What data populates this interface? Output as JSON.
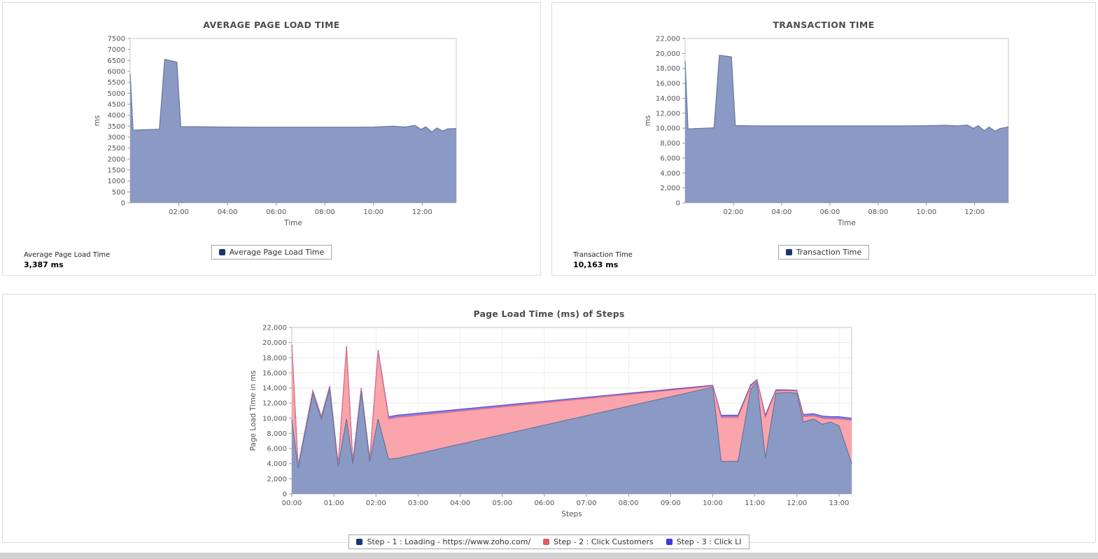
{
  "panels": {
    "avg_page_load": {
      "title": "AVERAGE PAGE LOAD TIME",
      "legend": [
        {
          "label": "Average Page Load Time",
          "color": "#17376f"
        }
      ],
      "summary_label": "Average Page Load Time",
      "summary_value": "3,387 ms"
    },
    "transaction_time": {
      "title": "TRANSACTION TIME",
      "legend": [
        {
          "label": "Transaction Time",
          "color": "#17376f"
        }
      ],
      "summary_label": "Transaction Time",
      "summary_value": "10,163 ms"
    },
    "steps": {
      "title": "Page Load Time (ms) of Steps",
      "legend": [
        {
          "label": "Step - 1 : Loading - https://www.zoho.com/",
          "color": "#17376f"
        },
        {
          "label": "Step - 2 : Click Customers",
          "color": "#e25b5b"
        },
        {
          "label": "Step - 3 : Click LI",
          "color": "#3b3bd8"
        }
      ]
    }
  },
  "chart_data": [
    {
      "id": "avg_page_load",
      "type": "area",
      "title": "AVERAGE PAGE LOAD TIME",
      "xlabel": "Time",
      "ylabel": "ms",
      "ylim": [
        0,
        7500
      ],
      "ytick_step": 500,
      "ytick_format": "plain",
      "xlim": [
        0,
        13.4
      ],
      "xticks": [
        2,
        4,
        6,
        8,
        10,
        12
      ],
      "xtick_labels": [
        "02:00",
        "04:00",
        "06:00",
        "08:00",
        "10:00",
        "12:00"
      ],
      "grid": false,
      "x": [
        0,
        0.12,
        1.2,
        1.42,
        1.92,
        2.08,
        3,
        4,
        5,
        6,
        7,
        8,
        9,
        10,
        10.8,
        11.3,
        11.7,
        11.95,
        12.15,
        12.4,
        12.6,
        12.85,
        13.05,
        13.4
      ],
      "series": [
        {
          "name": "Average Page Load Time",
          "fill": "#8a9ac4",
          "stroke": "#64759e",
          "values": [
            5900,
            3320,
            3360,
            6550,
            6420,
            3480,
            3470,
            3460,
            3450,
            3450,
            3450,
            3450,
            3450,
            3460,
            3500,
            3460,
            3540,
            3350,
            3470,
            3230,
            3420,
            3280,
            3380,
            3387
          ]
        }
      ]
    },
    {
      "id": "transaction_time",
      "type": "area",
      "title": "TRANSACTION TIME",
      "xlabel": "Time",
      "ylabel": "ms",
      "ylim": [
        0,
        22000
      ],
      "ytick_step": 2000,
      "ytick_format": "comma",
      "xlim": [
        0,
        13.4
      ],
      "xticks": [
        2,
        4,
        6,
        8,
        10,
        12
      ],
      "xtick_labels": [
        "02:00",
        "04:00",
        "06:00",
        "08:00",
        "10:00",
        "12:00"
      ],
      "grid": false,
      "x": [
        0,
        0.12,
        1.2,
        1.42,
        1.92,
        2.08,
        3,
        4,
        5,
        6,
        7,
        8,
        9,
        10,
        10.8,
        11.3,
        11.7,
        11.95,
        12.15,
        12.4,
        12.6,
        12.85,
        13.05,
        13.4
      ],
      "series": [
        {
          "name": "Transaction Time",
          "fill": "#8a9ac4",
          "stroke": "#64759e",
          "values": [
            19000,
            9900,
            10050,
            19750,
            19550,
            10350,
            10300,
            10300,
            10300,
            10300,
            10300,
            10300,
            10300,
            10320,
            10380,
            10300,
            10420,
            9980,
            10330,
            9650,
            10150,
            9600,
            9950,
            10163
          ]
        }
      ]
    },
    {
      "id": "steps",
      "type": "area",
      "stacked": true,
      "title": "Page Load Time (ms) of Steps",
      "xlabel": "Steps",
      "ylabel": "Page Load Time in ms",
      "ylim": [
        0,
        22000
      ],
      "ytick_step": 2000,
      "ytick_format": "comma",
      "xlim": [
        0,
        13.3
      ],
      "xticks": [
        0,
        1,
        2,
        3,
        4,
        5,
        6,
        7,
        8,
        9,
        10,
        11,
        12,
        13
      ],
      "xtick_labels": [
        "00:00",
        "01:00",
        "02:00",
        "03:00",
        "04:00",
        "05:00",
        "06:00",
        "07:00",
        "08:00",
        "09:00",
        "10:00",
        "11:00",
        "12:00",
        "13:00"
      ],
      "grid": true,
      "x": [
        0,
        0.15,
        0.5,
        0.7,
        0.9,
        1.1,
        1.3,
        1.45,
        1.65,
        1.85,
        2.05,
        2.3,
        2.5,
        10.0,
        10.2,
        10.6,
        10.9,
        11.05,
        11.25,
        11.5,
        11.75,
        12.0,
        12.15,
        12.4,
        12.6,
        12.8,
        13.0,
        13.3
      ],
      "series": [
        {
          "name": "Step - 1 : Loading - https://www.zoho.com/",
          "fill": "#8a9ac4",
          "stroke": "#64759e",
          "values": [
            9800,
            3400,
            13300,
            9900,
            13900,
            3600,
            9900,
            4000,
            13600,
            4300,
            9900,
            4600,
            4700,
            14100,
            4300,
            4300,
            13800,
            14800,
            4700,
            13300,
            13400,
            13300,
            9500,
            9900,
            9200,
            9500,
            9000,
            4000
          ]
        },
        {
          "name": "Step - 2 : Click Customers",
          "fill": "#faa4ac",
          "stroke": "#e9737e",
          "values": [
            9700,
            250,
            250,
            250,
            250,
            250,
            9400,
            250,
            300,
            200,
            8900,
            5300,
            5400,
            150,
            5800,
            5800,
            400,
            200,
            5400,
            300,
            250,
            300,
            700,
            400,
            800,
            400,
            900,
            5700
          ]
        },
        {
          "name": "Step - 3 : Click LI",
          "fill": "#8b7fe8",
          "stroke": "#5b4fd0",
          "values": [
            200,
            100,
            100,
            100,
            100,
            100,
            200,
            100,
            100,
            100,
            200,
            300,
            300,
            100,
            300,
            300,
            200,
            100,
            300,
            150,
            100,
            100,
            300,
            300,
            300,
            300,
            300,
            300
          ]
        }
      ]
    }
  ]
}
